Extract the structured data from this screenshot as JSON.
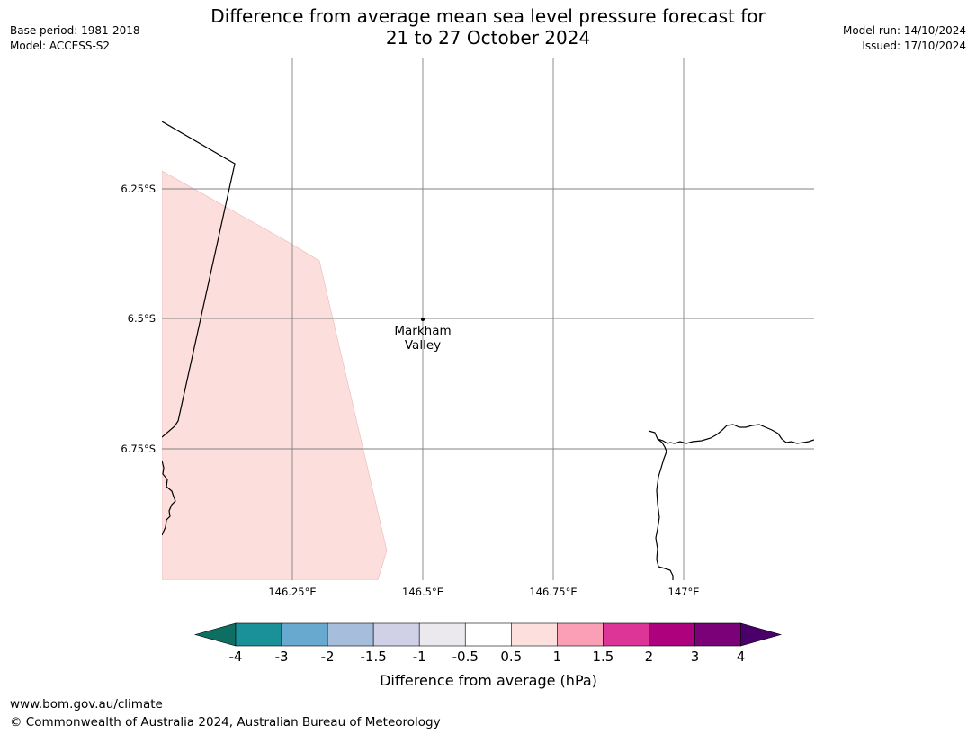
{
  "header": {
    "title_line1": "Difference from average mean sea level pressure forecast for",
    "title_line2": "21 to 27 October 2024",
    "base_period": "Base period: 1981-2018",
    "model": "Model: ACCESS-S2",
    "model_run": "Model run: 14/10/2024",
    "issued": "Issued: 17/10/2024"
  },
  "map": {
    "lat_labels": [
      "6.25°S",
      "6.5°S",
      "6.75°S"
    ],
    "lon_labels": [
      "146.25°E",
      "146.5°E",
      "146.75°E",
      "147°E"
    ],
    "location": {
      "name_line1": "Markham",
      "name_line2": "Valley",
      "lat": -6.5,
      "lon": 146.5
    },
    "anomaly_fill_class": "0.5 to 1",
    "colors": {
      "anomaly_fill": "#fcdfdd",
      "coastline": "#000000",
      "gridline": "#808080"
    }
  },
  "colorbar": {
    "tick_labels": [
      "-4",
      "-3",
      "-2",
      "-1.5",
      "-1",
      "-0.5",
      "0.5",
      "1",
      "1.5",
      "2",
      "3",
      "4"
    ],
    "colors": [
      "#0d6e62",
      "#1a9099",
      "#67a9cf",
      "#a6bddb",
      "#d0d1e6",
      "#ece9ee",
      "#ffffff",
      "#fde0dd",
      "#fa9fb5",
      "#dd3497",
      "#ae017e",
      "#7a0177",
      "#49006a"
    ],
    "label": "Difference from average (hPa)"
  },
  "footer": {
    "url": "www.bom.gov.au/climate",
    "copyright": "© Commonwealth of Australia 2024, Australian Bureau of Meteorology"
  }
}
